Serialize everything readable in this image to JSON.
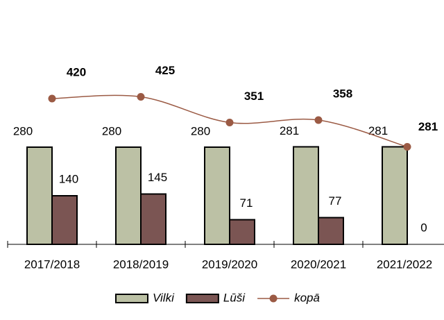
{
  "chart_data": {
    "type": "bar_line",
    "categories": [
      "2017/2018",
      "2018/2019",
      "2019/2020",
      "2020/2021",
      "2021/2022"
    ],
    "series": [
      {
        "name": "Vilki",
        "type": "bar",
        "color": "#bcc1a5",
        "values": [
          280,
          280,
          280,
          281,
          281
        ]
      },
      {
        "name": "Lūši",
        "type": "bar",
        "color": "#7b5553",
        "values": [
          140,
          145,
          71,
          77,
          0
        ]
      },
      {
        "name": "kopā",
        "type": "line",
        "color": "#9b5a44",
        "values": [
          420,
          425,
          351,
          358,
          281
        ]
      }
    ],
    "ylim": [
      0,
      700
    ],
    "legend": "bottom"
  }
}
